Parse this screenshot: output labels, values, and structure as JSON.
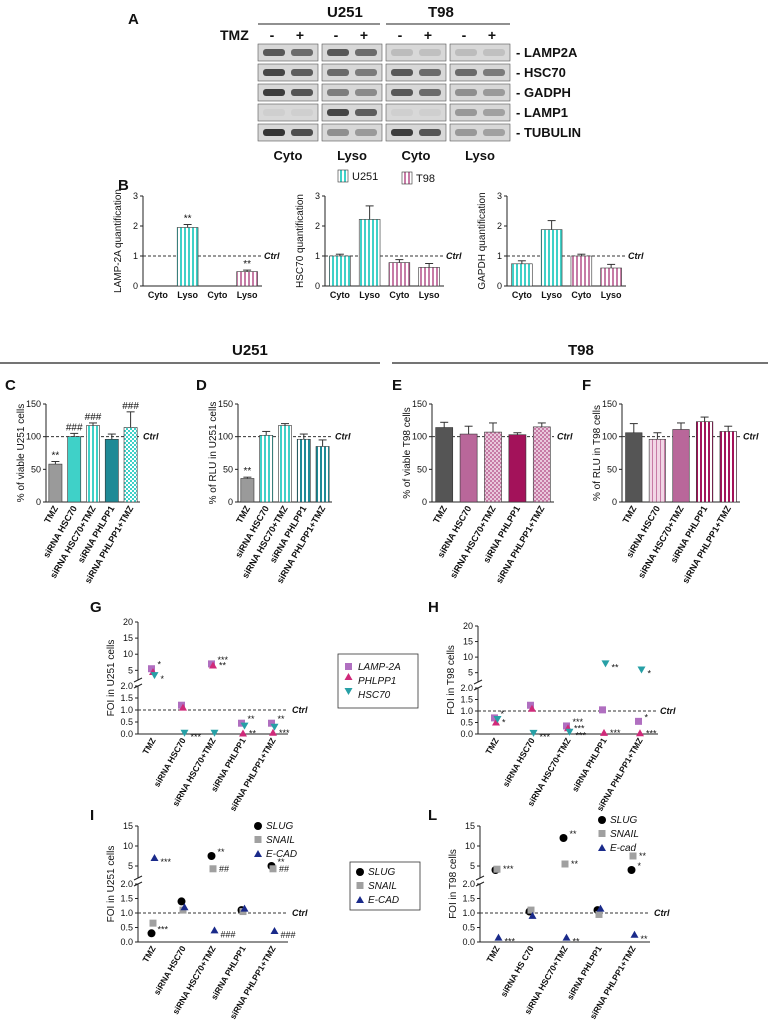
{
  "panel_labels": {
    "A": "A",
    "B": "B",
    "C": "C",
    "D": "D",
    "E": "E",
    "F": "F",
    "G": "G",
    "H": "H",
    "I": "I",
    "L": "L"
  },
  "blot": {
    "cell_lines": [
      "U251",
      "T98"
    ],
    "tmz_label": "TMZ",
    "tmz_signs": [
      "-",
      "+",
      "-",
      "+",
      "-",
      "+",
      "-",
      "+"
    ],
    "proteins": [
      "LAMP2A",
      "HSC70",
      "GADPH",
      "LAMP1",
      "TUBULIN"
    ],
    "fractions": [
      "Cyto",
      "Lyso",
      "Cyto",
      "Lyso"
    ]
  },
  "group_titles": {
    "u251": "U251",
    "t98": "T98"
  },
  "legend_B": [
    "U251",
    "T98"
  ],
  "legend_G": [
    "LAMP-2A",
    "PHLPP1",
    "HSC70"
  ],
  "legend_IL": [
    "SLUG",
    "SNAIL",
    "E-CAD"
  ],
  "legend_L": [
    "SLUG",
    "SNAIL",
    "E-cad"
  ],
  "ctrl_label": "Ctrl",
  "colors": {
    "u251": "#3fd1c8",
    "t98": "#c77ba6",
    "gray": "#9a9a9a",
    "teal_dark": "#1f8a96",
    "magenta": "#a3125a",
    "lamp": "#b06fc0",
    "phlpp": "#d02a7a",
    "hsc": "#27a0a6",
    "slug": "#000000",
    "snail": "#a0a0a0",
    "ecad": "#1a2a8a"
  },
  "chart_data": [
    {
      "id": "B1",
      "type": "bar",
      "ylabel": "LAMP-2A quantification",
      "ylim": [
        0,
        3
      ],
      "yticks": [
        "0",
        "1",
        "2",
        "3"
      ],
      "categories": [
        "Cyto",
        "Lyso",
        "Cyto",
        "Lyso"
      ],
      "values": [
        0,
        1.95,
        0,
        0.48
      ],
      "errors": [
        0,
        0.1,
        0,
        0.05
      ],
      "sig": [
        "",
        "**",
        "",
        "**"
      ]
    },
    {
      "id": "B2",
      "type": "bar",
      "ylabel": "HSC70 quantification",
      "ylim": [
        0,
        3
      ],
      "yticks": [
        "0",
        "1",
        "2",
        "3"
      ],
      "categories": [
        "Cyto",
        "Lyso",
        "Cyto",
        "Lyso"
      ],
      "values": [
        1.0,
        2.22,
        0.78,
        0.62
      ],
      "errors": [
        0.06,
        0.45,
        0.1,
        0.13
      ],
      "sig": [
        "",
        "",
        "",
        ""
      ]
    },
    {
      "id": "B3",
      "type": "bar",
      "ylabel": "GAPDH quantification",
      "ylim": [
        0,
        3
      ],
      "yticks": [
        "0",
        "1",
        "2",
        "3"
      ],
      "categories": [
        "Cyto",
        "Lyso",
        "Cyto",
        "Lyso"
      ],
      "values": [
        0.74,
        1.88,
        1.0,
        0.6
      ],
      "errors": [
        0.1,
        0.3,
        0.06,
        0.12
      ],
      "sig": [
        "",
        "",
        "",
        ""
      ]
    },
    {
      "id": "C",
      "type": "bar",
      "ylabel": "% of viable U251 cells",
      "ylim": [
        0,
        150
      ],
      "yticks": [
        "0",
        "50",
        "100",
        "150"
      ],
      "categories": [
        "TMZ",
        "siRNA HSC70",
        "siRNA HSC70+TMZ",
        "siRNA PHLPP1",
        "siRNA PHLPP1+TMZ"
      ],
      "values": [
        58,
        100,
        117,
        96,
        114
      ],
      "errors": [
        4,
        5,
        4,
        8,
        24
      ],
      "sig": [
        "**",
        "###",
        "###",
        "",
        "###"
      ]
    },
    {
      "id": "D",
      "type": "bar",
      "ylabel": "% of RLU in U251 cells",
      "ylim": [
        0,
        150
      ],
      "yticks": [
        "0",
        "50",
        "100",
        "150"
      ],
      "categories": [
        "TMZ",
        "siRNA HSC70",
        "siRNA HSC70+TMZ",
        "siRNA PHLPP1",
        "siRNA PHLPP1+TMZ"
      ],
      "values": [
        36,
        102,
        117,
        96,
        85
      ],
      "errors": [
        2,
        6,
        3,
        8,
        10
      ],
      "sig": [
        "**",
        "",
        "",
        "",
        ""
      ]
    },
    {
      "id": "E",
      "type": "bar",
      "ylabel": "% of viable T98 cells",
      "ylim": [
        0,
        150
      ],
      "yticks": [
        "0",
        "50",
        "100",
        "150"
      ],
      "categories": [
        "TMZ",
        "siRNA HSC70",
        "siRNA HSC70+TMZ",
        "siRNA PHLPP1",
        "siRNA PHLPP1+TMZ"
      ],
      "values": [
        114,
        104,
        107,
        103,
        115
      ],
      "errors": [
        8,
        12,
        14,
        3,
        6
      ],
      "sig": [
        "",
        "",
        "",
        "",
        ""
      ]
    },
    {
      "id": "F",
      "type": "bar",
      "ylabel": "% of RLU in T98 cells",
      "ylim": [
        0,
        150
      ],
      "yticks": [
        "0",
        "50",
        "100",
        "150"
      ],
      "categories": [
        "TMZ",
        "siRNA HSC70",
        "siRNA HSC70+TMZ",
        "siRNA PHLPP1",
        "siRNA PHLPP1+TMZ"
      ],
      "values": [
        106,
        96,
        111,
        123,
        108
      ],
      "errors": [
        14,
        10,
        10,
        7,
        8
      ],
      "sig": [
        "",
        "",
        "",
        "",
        ""
      ]
    },
    {
      "id": "G",
      "type": "scatter",
      "ylabel": "FOI in U251 cells",
      "yticks": [
        "0.0",
        "0.5",
        "1.0",
        "1.5",
        "2.0",
        "5",
        "10",
        "15",
        "20"
      ],
      "categories": [
        "TMZ",
        "siRNA HSC70",
        "siRNA HSC70+TMZ",
        "siRNA PHLPP1",
        "siRNA PHLPP1+TMZ"
      ],
      "series": [
        {
          "name": "LAMP-2A",
          "values": [
            5.5,
            1.2,
            7,
            0.45,
            0.45
          ],
          "sig": [
            "*",
            "",
            "***",
            "**",
            "**"
          ]
        },
        {
          "name": "PHLPP1",
          "values": [
            4.5,
            1.1,
            6.5,
            0.02,
            0.05
          ],
          "sig": [
            "",
            "",
            "**",
            "**",
            "***"
          ]
        },
        {
          "name": "HSC70",
          "values": [
            3.5,
            0.05,
            0.05,
            0.35,
            0.3
          ],
          "sig": [
            "*",
            "***",
            "",
            "",
            ""
          ]
        }
      ]
    },
    {
      "id": "H",
      "type": "scatter",
      "ylabel": "FOI in T98 cells",
      "yticks": [
        "0.0",
        "0.5",
        "1.0",
        "1.5",
        "2.0",
        "5",
        "10",
        "15",
        "20"
      ],
      "categories": [
        "TMZ",
        "siRNA HSC70",
        "siRNA HSC70+TMZ",
        "siRNA PHLPP1",
        "siRNA PHLPP1+TMZ"
      ],
      "series": [
        {
          "name": "LAMP-2A",
          "values": [
            0.7,
            1.25,
            0.35,
            1.05,
            0.55
          ],
          "sig": [
            "*",
            "",
            "***",
            "",
            "*"
          ]
        },
        {
          "name": "PHLPP1",
          "values": [
            0.5,
            1.1,
            0.25,
            0.05,
            0.03
          ],
          "sig": [
            "*",
            "",
            "***",
            "***",
            "***"
          ]
        },
        {
          "name": "HSC70",
          "values": [
            0.65,
            0.05,
            0.1,
            8,
            6
          ],
          "sig": [
            "",
            "***",
            "***",
            "**",
            "*"
          ]
        }
      ]
    },
    {
      "id": "I",
      "type": "scatter",
      "ylabel": "FOI in U251 cells",
      "yticks": [
        "0.0",
        "0.5",
        "1.0",
        "1.5",
        "2.0",
        "5",
        "10",
        "15"
      ],
      "categories": [
        "TMZ",
        "siRNA HSC70",
        "siRNA HSC70+TMZ",
        "siRNA PHLPP1",
        "siRNA PHLPP1+TMZ"
      ],
      "series": [
        {
          "name": "SLUG",
          "values": [
            0.3,
            1.4,
            7.5,
            1.1,
            5
          ],
          "sig": [
            "***",
            "",
            "**",
            "",
            "**"
          ]
        },
        {
          "name": "SNAIL",
          "values": [
            0.65,
            1.1,
            4.3,
            1.05,
            4.3
          ],
          "sig": [
            "",
            "",
            "##",
            "",
            "##"
          ]
        },
        {
          "name": "E-CAD",
          "values": [
            7,
            1.2,
            0.4,
            1.15,
            0.38
          ],
          "sig": [
            "***",
            "",
            "###",
            "",
            "###"
          ]
        }
      ]
    },
    {
      "id": "L",
      "type": "scatter",
      "ylabel": "FOI in T98 cells",
      "yticks": [
        "0.0",
        "0.5",
        "1.0",
        "1.5",
        "2.0",
        "5",
        "10",
        "15"
      ],
      "categories": [
        "TMZ",
        "siRNA HS C70",
        "siRNA HSC70+TMZ",
        "siRNA PHLPP1",
        "siRNA PHLPP1+TMZ"
      ],
      "series": [
        {
          "name": "SLUG",
          "values": [
            4,
            1.05,
            12,
            1.1,
            4
          ],
          "sig": [
            "",
            "",
            "**",
            "",
            "*"
          ]
        },
        {
          "name": "SNAIL",
          "values": [
            4.2,
            1.1,
            5.5,
            0.95,
            7.5
          ],
          "sig": [
            "***",
            "",
            "**",
            "",
            "**"
          ]
        },
        {
          "name": "E-cad",
          "values": [
            0.15,
            0.9,
            0.15,
            1.15,
            0.25
          ],
          "sig": [
            "***",
            "",
            "**",
            "",
            "**"
          ]
        }
      ]
    }
  ]
}
